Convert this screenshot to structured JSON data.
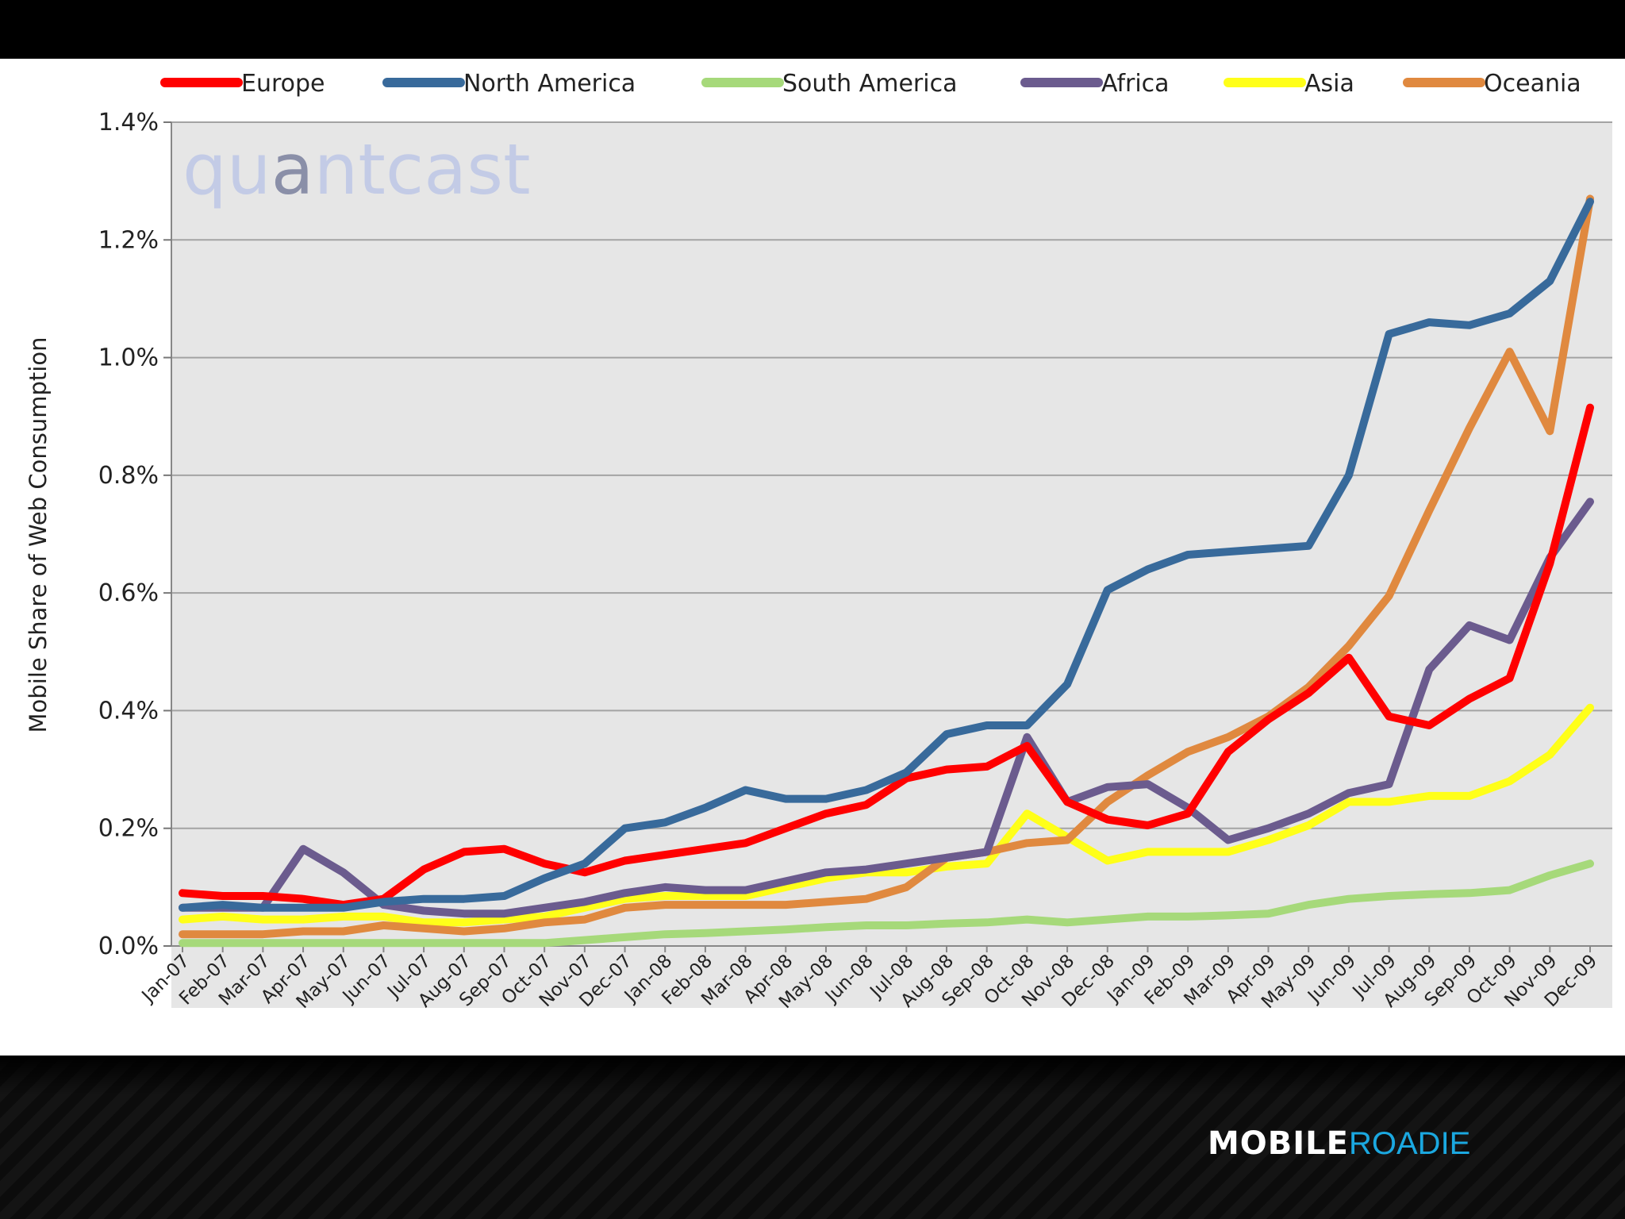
{
  "colors": {
    "europe": "#ff0000",
    "north_america": "#386a9b",
    "south_america": "#a6d97a",
    "africa": "#6b5b8e",
    "asia": "#ffff19",
    "oceania": "#e0893f",
    "plot_background": "#e6e6e6",
    "gridline": "#a3a3a3"
  },
  "watermark": "quantcast",
  "footer": {
    "logo_bold": "MOBILE",
    "logo_thin": "ROADIE"
  },
  "chart_data": {
    "type": "line",
    "title": "",
    "xlabel": "",
    "ylabel": "Mobile Share of Web Consumption",
    "ylim": [
      0,
      1.4
    ],
    "y_ticks": [
      "0.0%",
      "0.2%",
      "0.4%",
      "0.6%",
      "0.8%",
      "1.0%",
      "1.2%",
      "1.4%"
    ],
    "grid": true,
    "legend_position": "top",
    "x": [
      "Jan-07",
      "Feb-07",
      "Mar-07",
      "Apr-07",
      "May-07",
      "Jun-07",
      "Jul-07",
      "Aug-07",
      "Sep-07",
      "Oct-07",
      "Nov-07",
      "Dec-07",
      "Jan-08",
      "Feb-08",
      "Mar-08",
      "Apr-08",
      "May-08",
      "Jun-08",
      "Jul-08",
      "Aug-08",
      "Sep-08",
      "Oct-08",
      "Nov-08",
      "Dec-08",
      "Jan-09",
      "Feb-09",
      "Mar-09",
      "Apr-09",
      "May-09",
      "Jun-09",
      "Jul-09",
      "Aug-09",
      "Sep-09",
      "Oct-09",
      "Nov-09",
      "Dec-09"
    ],
    "series": [
      {
        "name": "Europe",
        "color_key": "europe",
        "values": [
          0.09,
          0.085,
          0.085,
          0.08,
          0.07,
          0.08,
          0.13,
          0.16,
          0.165,
          0.14,
          0.125,
          0.145,
          0.155,
          0.165,
          0.175,
          0.2,
          0.225,
          0.24,
          0.285,
          0.3,
          0.305,
          0.34,
          0.245,
          0.215,
          0.205,
          0.225,
          0.33,
          0.385,
          0.43,
          0.49,
          0.39,
          0.375,
          0.42,
          0.455,
          0.65,
          0.915
        ]
      },
      {
        "name": "North America",
        "color_key": "north_america",
        "values": [
          0.065,
          0.07,
          0.065,
          0.065,
          0.065,
          0.075,
          0.08,
          0.08,
          0.085,
          0.115,
          0.14,
          0.2,
          0.21,
          0.235,
          0.265,
          0.25,
          0.25,
          0.265,
          0.295,
          0.36,
          0.375,
          0.375,
          0.445,
          0.605,
          0.64,
          0.665,
          0.67,
          0.675,
          0.68,
          0.8,
          1.04,
          1.06,
          1.055,
          1.075,
          1.13,
          1.265
        ]
      },
      {
        "name": "South America",
        "color_key": "south_america",
        "values": [
          0.005,
          0.005,
          0.005,
          0.005,
          0.005,
          0.005,
          0.005,
          0.005,
          0.005,
          0.005,
          0.01,
          0.015,
          0.02,
          0.022,
          0.025,
          0.028,
          0.032,
          0.035,
          0.035,
          0.038,
          0.04,
          0.045,
          0.04,
          0.045,
          0.05,
          0.05,
          0.052,
          0.055,
          0.07,
          0.08,
          0.085,
          0.088,
          0.09,
          0.095,
          0.12,
          0.14
        ]
      },
      {
        "name": "Africa",
        "color_key": "africa",
        "values": [
          0.065,
          0.065,
          0.065,
          0.165,
          0.125,
          0.07,
          0.06,
          0.055,
          0.055,
          0.065,
          0.075,
          0.09,
          0.1,
          0.095,
          0.095,
          0.11,
          0.125,
          0.13,
          0.14,
          0.15,
          0.16,
          0.355,
          0.245,
          0.27,
          0.275,
          0.235,
          0.18,
          0.2,
          0.225,
          0.26,
          0.275,
          0.47,
          0.545,
          0.52,
          0.66,
          0.755
        ]
      },
      {
        "name": "Asia",
        "color_key": "asia",
        "values": [
          0.045,
          0.05,
          0.045,
          0.045,
          0.05,
          0.05,
          0.04,
          0.04,
          0.045,
          0.05,
          0.065,
          0.08,
          0.085,
          0.085,
          0.085,
          0.1,
          0.115,
          0.125,
          0.125,
          0.135,
          0.14,
          0.225,
          0.185,
          0.145,
          0.16,
          0.16,
          0.16,
          0.18,
          0.205,
          0.245,
          0.245,
          0.255,
          0.255,
          0.28,
          0.325,
          0.405
        ]
      },
      {
        "name": "Oceania",
        "color_key": "oceania",
        "values": [
          0.02,
          0.02,
          0.02,
          0.025,
          0.025,
          0.035,
          0.03,
          0.025,
          0.03,
          0.04,
          0.045,
          0.065,
          0.07,
          0.07,
          0.07,
          0.07,
          0.075,
          0.08,
          0.1,
          0.15,
          0.16,
          0.175,
          0.18,
          0.245,
          0.29,
          0.33,
          0.355,
          0.39,
          0.44,
          0.51,
          0.595,
          0.74,
          0.88,
          1.01,
          0.875,
          1.27
        ]
      }
    ]
  }
}
